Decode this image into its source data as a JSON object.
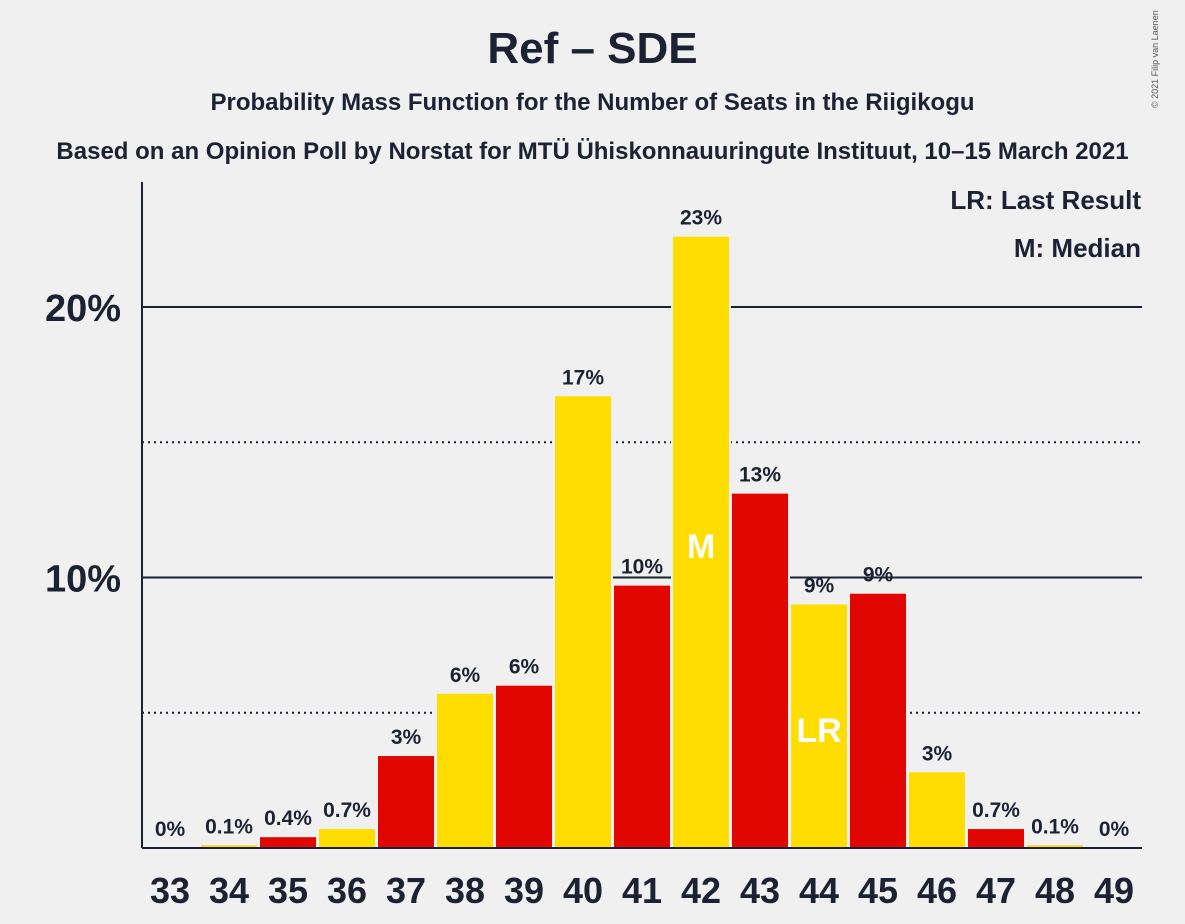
{
  "title": "Ref – SDE",
  "subtitle": "Probability Mass Function for the Number of Seats in the Riigikogu",
  "subtitle2": "Based on an Opinion Poll by Norstat for MTÜ Ühiskonnauuringute Instituut, 10–15 March 2021",
  "copyright": "© 2021 Filip van Laenen",
  "legend": {
    "lr": "LR: Last Result",
    "m": "M: Median"
  },
  "colors": {
    "ref": "#FFDD00",
    "sde": "#E10600",
    "text": "#1a2233",
    "background": "#f0f0f0"
  },
  "chart_data": {
    "type": "bar",
    "categories": [
      "33",
      "34",
      "35",
      "36",
      "37",
      "38",
      "39",
      "40",
      "41",
      "42",
      "43",
      "44",
      "45",
      "46",
      "47",
      "48",
      "49"
    ],
    "values": [
      0,
      0.1,
      0.4,
      0.7,
      3.4,
      5.7,
      6.0,
      16.7,
      9.7,
      22.6,
      13.1,
      9.0,
      9.4,
      2.8,
      0.7,
      0.1,
      0
    ],
    "labels": [
      "0%",
      "0.1%",
      "0.4%",
      "0.7%",
      "3%",
      "6%",
      "6%",
      "17%",
      "10%",
      "23%",
      "13%",
      "9%",
      "9%",
      "3%",
      "0.7%",
      "0.1%",
      "0%"
    ],
    "bar_colors": [
      "yellow",
      "yellow",
      "red",
      "yellow",
      "red",
      "yellow",
      "red",
      "yellow",
      "red",
      "yellow",
      "red",
      "yellow",
      "red",
      "yellow",
      "red",
      "yellow",
      "red"
    ],
    "markers": {
      "median": "42",
      "last_result": "44",
      "median_label": "M",
      "last_result_label": "LR"
    },
    "yticks": [
      {
        "value": 10,
        "label": "10%"
      },
      {
        "value": 20,
        "label": "20%"
      }
    ],
    "minor_gridlines": [
      5,
      15
    ],
    "ylim": [
      0,
      24.6
    ],
    "grid": true,
    "legend_position": "top-right"
  }
}
